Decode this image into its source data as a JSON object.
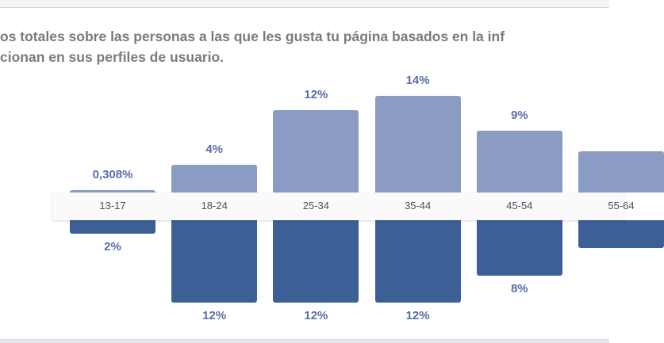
{
  "description": {
    "line1": "os totales sobre las personas a las que les gusta tu página basados en la inf",
    "line2": "cionan en sus perfiles de usuario."
  },
  "chart_data": {
    "type": "bar",
    "orientation": "mirrored",
    "categories": [
      "13-17",
      "18-24",
      "25-34",
      "35-44",
      "45-54",
      "55-64"
    ],
    "series": [
      {
        "name": "top",
        "color": "#8a9cc4",
        "values": [
          0.308,
          4,
          12,
          14,
          9,
          6
        ],
        "labels": [
          "0,308%",
          "4%",
          "12%",
          "14%",
          "9%",
          ""
        ]
      },
      {
        "name": "bottom",
        "color": "#3c5f96",
        "values": [
          2,
          12,
          12,
          12,
          8,
          4
        ],
        "labels": [
          "2%",
          "12%",
          "12%",
          "12%",
          "8%",
          ""
        ]
      }
    ],
    "ylabel": "%",
    "grid": false
  }
}
